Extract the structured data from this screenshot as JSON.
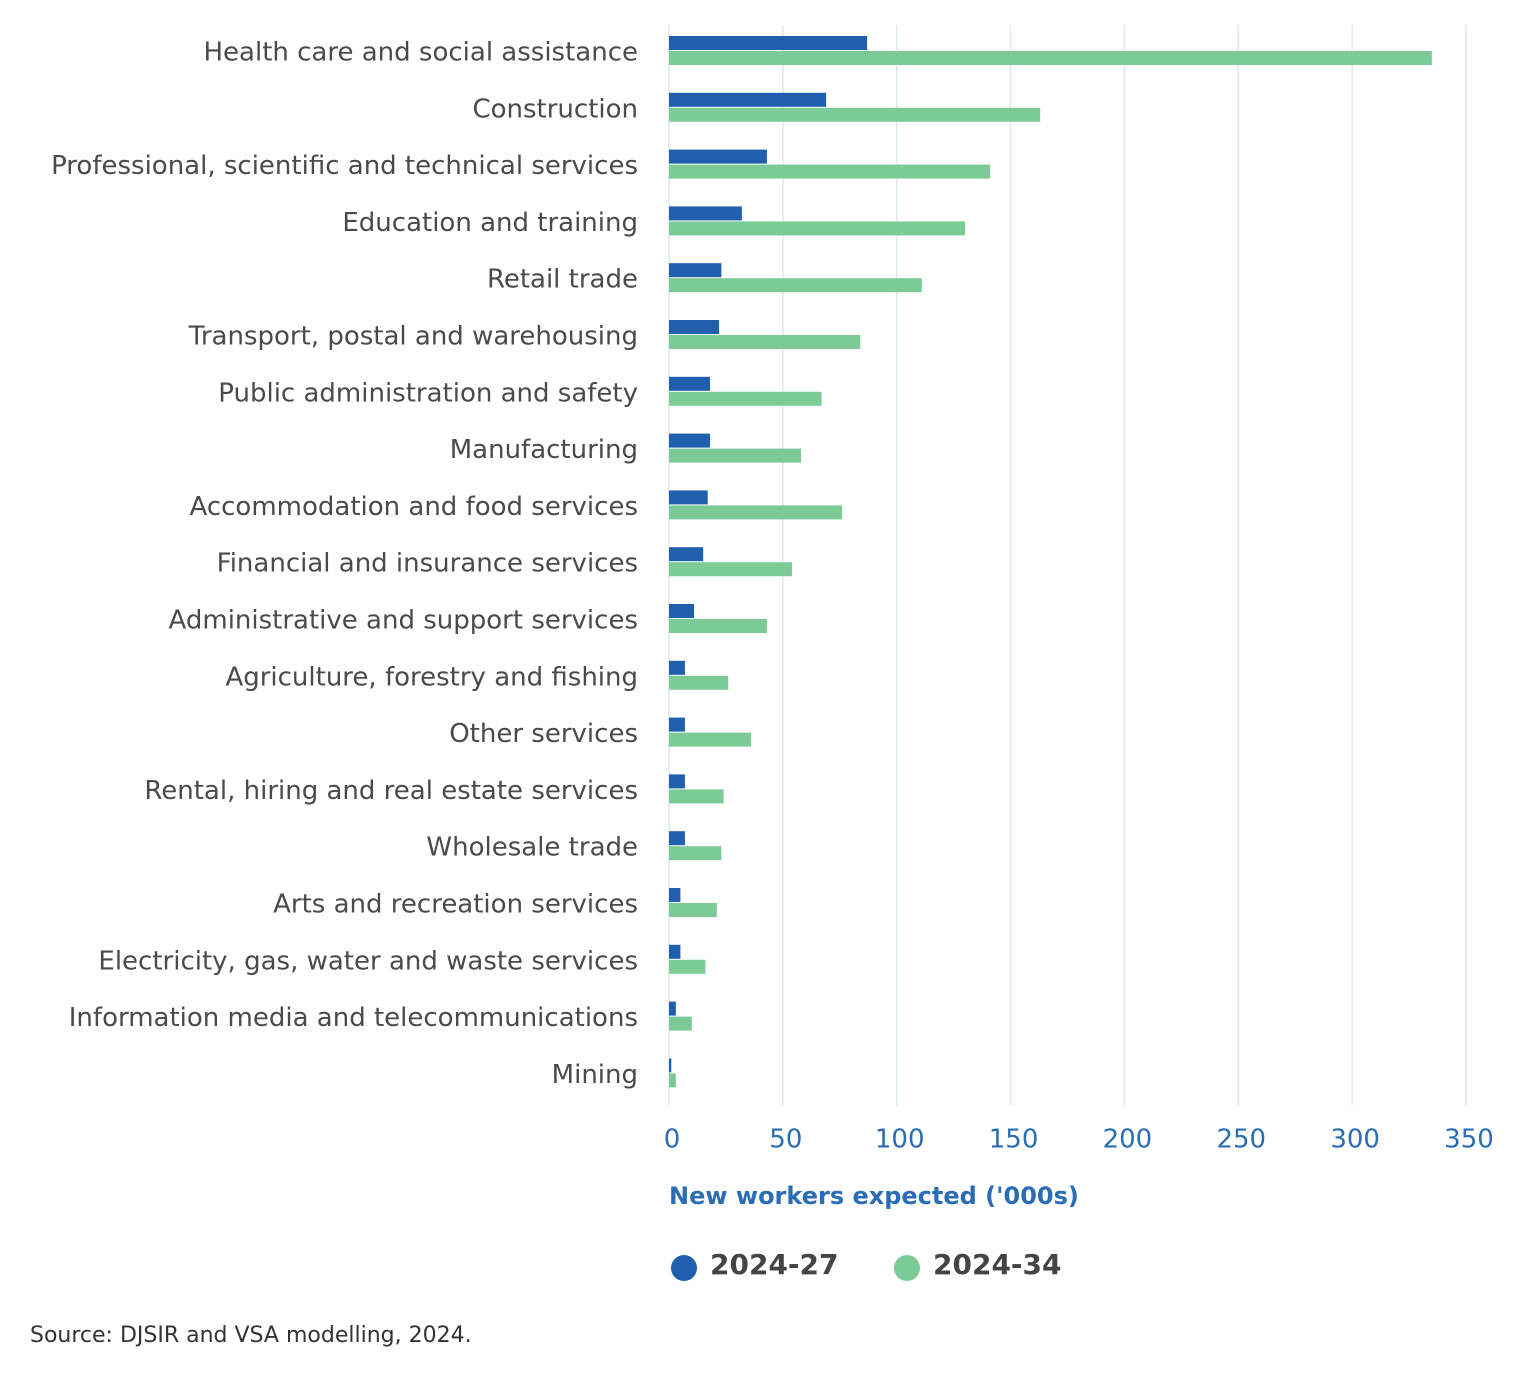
{
  "chart_data": {
    "type": "hbar",
    "categories": [
      "Health care and social assistance",
      "Construction",
      "Professional, scientific and technical services",
      "Education and training",
      "Retail trade",
      "Transport, postal and warehousing",
      "Public administration and safety",
      "Manufacturing",
      "Accommodation and food services",
      "Financial and insurance services",
      "Administrative and support services",
      "Agriculture, forestry and fishing",
      "Other services",
      "Rental, hiring and real estate services",
      "Wholesale trade",
      "Arts and recreation services",
      "Electricity, gas, water and waste services",
      "Information media and telecommunications",
      "Mining"
    ],
    "series": [
      {
        "name": "2024-27",
        "color": "#1f5fad",
        "values": [
          87,
          69,
          43,
          32,
          23,
          22,
          18,
          18,
          17,
          15,
          11,
          7,
          7,
          7,
          7,
          5,
          5,
          3,
          1
        ]
      },
      {
        "name": "2024-34",
        "color": "#7ccb97",
        "values": [
          335,
          163,
          141,
          130,
          111,
          84,
          67,
          58,
          76,
          54,
          43,
          26,
          36,
          24,
          23,
          21,
          16,
          10,
          3
        ]
      }
    ],
    "x_label": "New workers expected ('000s)",
    "xlim": [
      0,
      350
    ],
    "xticks": [
      0,
      50,
      100,
      150,
      200,
      250,
      300,
      350
    ],
    "grid": true,
    "source": "Source: DJSIR and VSA modelling, 2024."
  }
}
